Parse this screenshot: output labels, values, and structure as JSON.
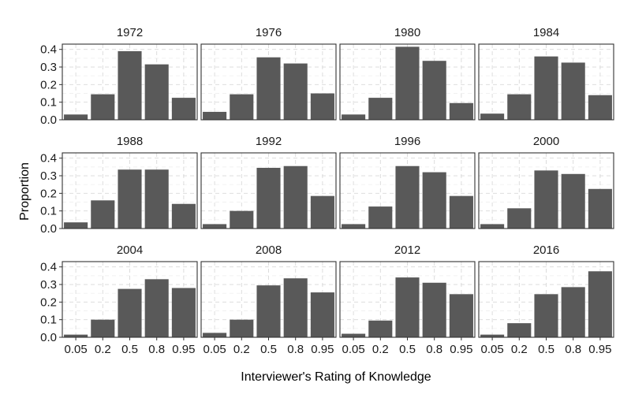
{
  "chart_data": {
    "type": "bar",
    "layout": "facet-grid 3x4",
    "xlabel": "Interviewer's Rating of Knowledge",
    "ylabel": "Proportion",
    "categories": [
      "0.05",
      "0.2",
      "0.5",
      "0.8",
      "0.95"
    ],
    "ylim": [
      0,
      0.43
    ],
    "yticks": [
      0.0,
      0.1,
      0.2,
      0.3,
      0.4
    ],
    "ytick_labels": [
      "0.0",
      "0.1",
      "0.2",
      "0.3",
      "0.4"
    ],
    "grid": true,
    "legend": "none",
    "bar_color": "#595959",
    "panels": [
      {
        "title": "1972",
        "values": [
          0.03,
          0.145,
          0.39,
          0.315,
          0.125
        ]
      },
      {
        "title": "1976",
        "values": [
          0.045,
          0.145,
          0.355,
          0.32,
          0.15
        ]
      },
      {
        "title": "1980",
        "values": [
          0.03,
          0.125,
          0.415,
          0.335,
          0.095
        ]
      },
      {
        "title": "1984",
        "values": [
          0.035,
          0.145,
          0.36,
          0.325,
          0.14
        ]
      },
      {
        "title": "1988",
        "values": [
          0.035,
          0.16,
          0.335,
          0.335,
          0.14
        ]
      },
      {
        "title": "1992",
        "values": [
          0.025,
          0.1,
          0.345,
          0.355,
          0.185
        ]
      },
      {
        "title": "1996",
        "values": [
          0.025,
          0.125,
          0.355,
          0.32,
          0.185
        ]
      },
      {
        "title": "2000",
        "values": [
          0.025,
          0.115,
          0.33,
          0.31,
          0.225
        ]
      },
      {
        "title": "2004",
        "values": [
          0.015,
          0.1,
          0.275,
          0.33,
          0.28
        ]
      },
      {
        "title": "2008",
        "values": [
          0.025,
          0.1,
          0.295,
          0.335,
          0.255
        ]
      },
      {
        "title": "2012",
        "values": [
          0.02,
          0.095,
          0.34,
          0.31,
          0.245
        ]
      },
      {
        "title": "2016",
        "values": [
          0.015,
          0.08,
          0.245,
          0.285,
          0.375
        ]
      }
    ]
  }
}
